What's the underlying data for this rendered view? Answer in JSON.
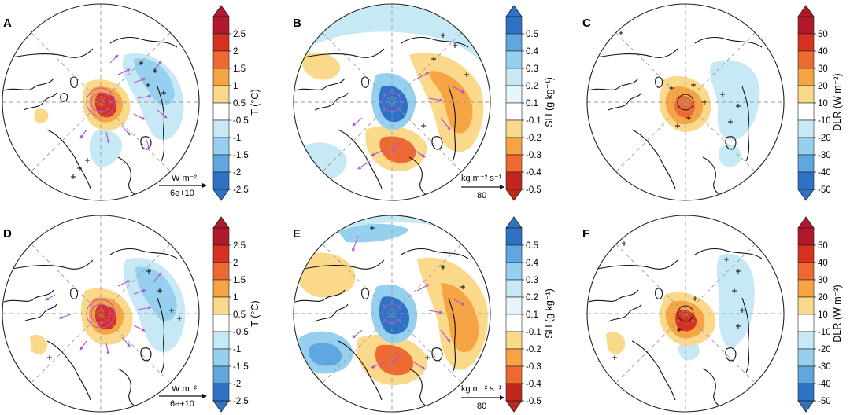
{
  "chart_data": [
    {
      "type": "heatmap",
      "panel": "A",
      "variable": "T",
      "colorbar": {
        "title": "T (°C)",
        "ticks": [
          "2.5",
          "2",
          "1.5",
          "1",
          "0.5",
          "-0.5",
          "-1",
          "-1.5",
          "-2",
          "-2.5"
        ]
      },
      "vectors": {
        "reference_label": "W m⁻²",
        "reference_value": "6e+10"
      },
      "significance_markers": "+"
    },
    {
      "type": "heatmap",
      "panel": "B",
      "variable": "SH",
      "colorbar": {
        "title": "SH (g kg⁻¹)",
        "ticks": [
          "0.5",
          "0.4",
          "0.3",
          "0.2",
          "0.1",
          "-0.1",
          "-0.2",
          "-0.3",
          "-0.4",
          "-0.5"
        ]
      },
      "vectors": {
        "reference_label": "kg m⁻² s⁻¹",
        "reference_value": "80"
      },
      "significance_markers": "+"
    },
    {
      "type": "heatmap",
      "panel": "C",
      "variable": "DLR",
      "colorbar": {
        "title": "DLR (W m⁻²)",
        "ticks": [
          "50",
          "40",
          "30",
          "20",
          "10",
          "-10",
          "-20",
          "-30",
          "-40",
          "-50"
        ]
      },
      "significance_markers": "+"
    },
    {
      "type": "heatmap",
      "panel": "D",
      "variable": "T",
      "colorbar": {
        "title": "T (°C)",
        "ticks": [
          "2.5",
          "2",
          "1.5",
          "1",
          "0.5",
          "-0.5",
          "-1",
          "-1.5",
          "-2",
          "-2.5"
        ]
      },
      "vectors": {
        "reference_label": "W m⁻²",
        "reference_value": "6e+10"
      },
      "significance_markers": "+"
    },
    {
      "type": "heatmap",
      "panel": "E",
      "variable": "SH",
      "colorbar": {
        "title": "SH (g kg⁻¹)",
        "ticks": [
          "0.5",
          "0.4",
          "0.3",
          "0.2",
          "0.1",
          "-0.1",
          "-0.2",
          "-0.3",
          "-0.4",
          "-0.5"
        ]
      },
      "vectors": {
        "reference_label": "kg m⁻² s⁻¹",
        "reference_value": "80"
      },
      "significance_markers": "+"
    },
    {
      "type": "heatmap",
      "panel": "F",
      "variable": "DLR",
      "colorbar": {
        "title": "DLR (W m⁻²)",
        "ticks": [
          "50",
          "40",
          "30",
          "20",
          "10",
          "-10",
          "-20",
          "-30",
          "-40",
          "-50"
        ]
      },
      "significance_markers": "+"
    }
  ],
  "palettes": {
    "warm_positive": [
      "#b2182b",
      "#d6301e",
      "#ef6a32",
      "#f7a444",
      "#fbd98a",
      "#ffffff",
      "#c6e9f5",
      "#97d0ef",
      "#5ea8df",
      "#2e72c6"
    ],
    "moist_positive": [
      "#2e72c6",
      "#5ea8df",
      "#97d0ef",
      "#c6e9f5",
      "#e6f5fb",
      "#ffffff",
      "#fbd98a",
      "#f7a444",
      "#ef6a32",
      "#c0271f"
    ],
    "vector_color": "#b84fd6"
  }
}
